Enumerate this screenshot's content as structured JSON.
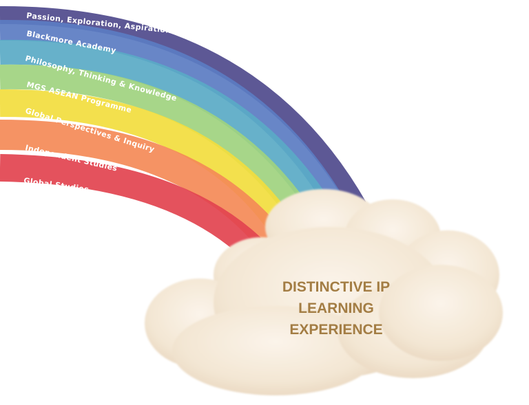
{
  "rainbow": {
    "bands": [
      {
        "label": "Passion, Exploration, Aspiration & Knowledge",
        "color": "#4f4a8c"
      },
      {
        "label": "Blackmore Academy",
        "color": "#5b7cc2"
      },
      {
        "label": "Philosophy, Thinking & Knowledge",
        "color": "#5aaac6"
      },
      {
        "label": "MGS ASEAN Programme",
        "color": "#9fd27f"
      },
      {
        "label": "Global Perspectives & Inquiry",
        "color": "#f2dd3e"
      },
      {
        "label": "Independent Studies",
        "color": "#f48a57"
      },
      {
        "label": "Global Studies",
        "color": "#e2434f"
      }
    ]
  },
  "cloud": {
    "lines": [
      "DISTINCTIVE IP",
      "LEARNING",
      "EXPERIENCE"
    ],
    "text_color": "#a37d44",
    "fill_color": "#f5e9d9"
  }
}
